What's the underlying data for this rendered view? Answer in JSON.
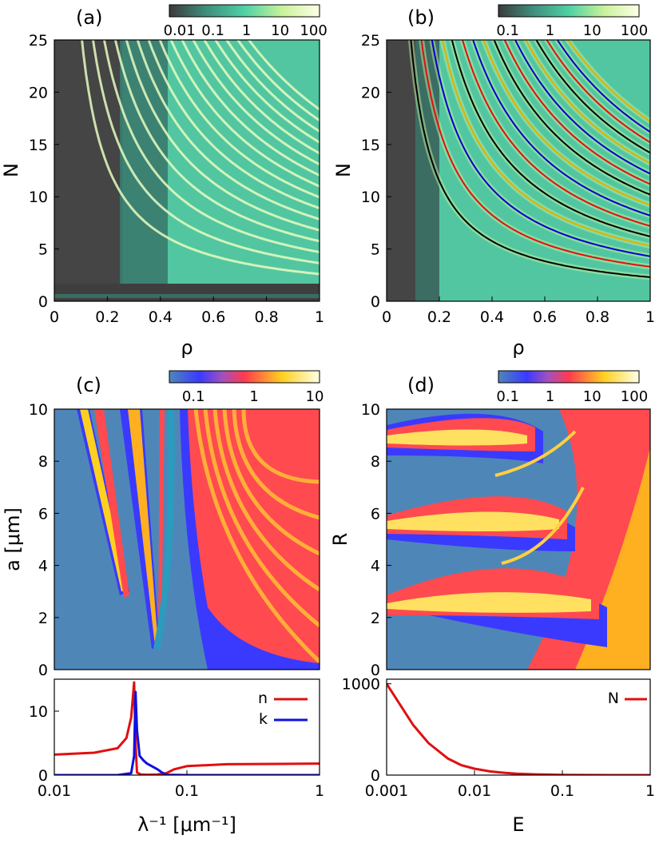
{
  "panels": {
    "a": {
      "label": "(a)",
      "xlabel": "ρ",
      "ylabel": "N",
      "xticks": [
        "0",
        "0.2",
        "0.4",
        "0.6",
        "0.8",
        "1"
      ],
      "yticks": [
        "0",
        "5",
        "10",
        "15",
        "20",
        "25"
      ],
      "colorbar_ticks": [
        "0.01",
        "0.1",
        "1",
        "10",
        "100"
      ]
    },
    "b": {
      "label": "(b)",
      "xlabel": "ρ",
      "ylabel": "N",
      "xticks": [
        "0",
        "0.2",
        "0.4",
        "0.6",
        "0.8",
        "1"
      ],
      "yticks": [
        "0",
        "5",
        "10",
        "15",
        "20",
        "25"
      ],
      "colorbar_ticks": [
        "0.1",
        "1",
        "10",
        "100"
      ]
    },
    "c": {
      "label": "(c)",
      "ylabel": "a [μm]",
      "yticks": [
        "0",
        "2",
        "4",
        "6",
        "8",
        "10"
      ],
      "colorbar_ticks": [
        "0.1",
        "1",
        "10"
      ],
      "sub": {
        "xlabel": "λ⁻¹ [μm⁻¹]",
        "xticks": [
          "0.01",
          "0.1",
          "1"
        ],
        "yticks": [
          "0",
          "10"
        ],
        "legend": [
          "n",
          "k"
        ]
      }
    },
    "d": {
      "label": "(d)",
      "ylabel": "R",
      "yticks": [
        "0",
        "2",
        "4",
        "6",
        "8",
        "10"
      ],
      "colorbar_ticks": [
        "0.1",
        "1",
        "10",
        "100"
      ],
      "sub": {
        "xlabel": "E",
        "xticks": [
          "0.001",
          "0.01",
          "0.1",
          "1"
        ],
        "yticks": [
          "0",
          "1000"
        ],
        "legend": [
          "N"
        ]
      }
    }
  },
  "colors": {
    "n_line": "#e01010",
    "k_line": "#1010e0",
    "N_line": "#e01010",
    "b_curves": [
      "#000000",
      "#e01010",
      "#0000cc",
      "#e0b000"
    ]
  },
  "chart_data": [
    {
      "type": "heatmap",
      "title": "(a)",
      "xlabel": "ρ",
      "ylabel": "N",
      "xlim": [
        0,
        1
      ],
      "ylim": [
        0,
        25
      ],
      "colorscale": "log",
      "crange": [
        0.01,
        100
      ],
      "resonance_curves": "N·ρ ≈ constant families"
    },
    {
      "type": "heatmap",
      "title": "(b)",
      "xlabel": "ρ",
      "ylabel": "N",
      "xlim": [
        0,
        1
      ],
      "ylim": [
        0,
        25
      ],
      "colorscale": "log",
      "crange": [
        0.1,
        100
      ],
      "overlay_curve_constants": [
        2.3,
        3.3,
        4.3,
        5.3,
        6.2,
        7.2,
        8.2,
        9.2,
        10.2,
        11.2,
        12.2,
        13.2,
        14.2,
        15.2,
        16.2,
        17.2
      ]
    },
    {
      "type": "heatmap",
      "title": "(c)",
      "xlabel": "λ⁻¹ [μm⁻¹]",
      "ylabel": "a [μm]",
      "xlim": [
        0.01,
        1
      ],
      "xscale": "log",
      "ylim": [
        0,
        10
      ],
      "colorscale": "log",
      "crange": [
        0.05,
        10
      ]
    },
    {
      "type": "line",
      "title": "(c) lower",
      "xlabel": "λ⁻¹ [μm⁻¹]",
      "xlim": [
        0.01,
        1
      ],
      "xscale": "log",
      "ylim": [
        0,
        15
      ],
      "series": [
        {
          "name": "n",
          "x": [
            0.01,
            0.02,
            0.03,
            0.035,
            0.038,
            0.04,
            0.041,
            0.042,
            0.045,
            0.05,
            0.06,
            0.07,
            0.08,
            0.1,
            0.2,
            0.5,
            1
          ],
          "y": [
            3.2,
            3.5,
            4.2,
            5.8,
            9.0,
            14.5,
            5.0,
            0.4,
            0.1,
            0.05,
            0.1,
            0.3,
            0.9,
            1.4,
            1.7,
            1.75,
            1.8
          ]
        },
        {
          "name": "k",
          "x": [
            0.01,
            0.03,
            0.038,
            0.04,
            0.041,
            0.042,
            0.044,
            0.047,
            0.05,
            0.06,
            0.065,
            0.07,
            0.1,
            1
          ],
          "y": [
            0,
            0,
            0.3,
            3.0,
            13.0,
            7.0,
            3.0,
            2.3,
            1.8,
            0.9,
            0.4,
            0.05,
            0,
            0
          ]
        }
      ]
    },
    {
      "type": "heatmap",
      "title": "(d)",
      "xlabel": "E",
      "ylabel": "R",
      "xlim": [
        0.001,
        1
      ],
      "xscale": "log",
      "ylim": [
        0,
        10
      ],
      "colorscale": "log",
      "crange": [
        0.05,
        100
      ]
    },
    {
      "type": "line",
      "title": "(d) lower",
      "xlabel": "E",
      "xlim": [
        0.001,
        1
      ],
      "xscale": "log",
      "ylim": [
        0,
        1050
      ],
      "series": [
        {
          "name": "N",
          "x": [
            0.001,
            0.002,
            0.003,
            0.005,
            0.007,
            0.01,
            0.015,
            0.02,
            0.03,
            0.05,
            0.07,
            0.1,
            0.2,
            0.5,
            1
          ],
          "y": [
            1000,
            550,
            350,
            180,
            110,
            70,
            40,
            28,
            16,
            8,
            5,
            3,
            1,
            0.4,
            0.2
          ]
        }
      ]
    }
  ]
}
